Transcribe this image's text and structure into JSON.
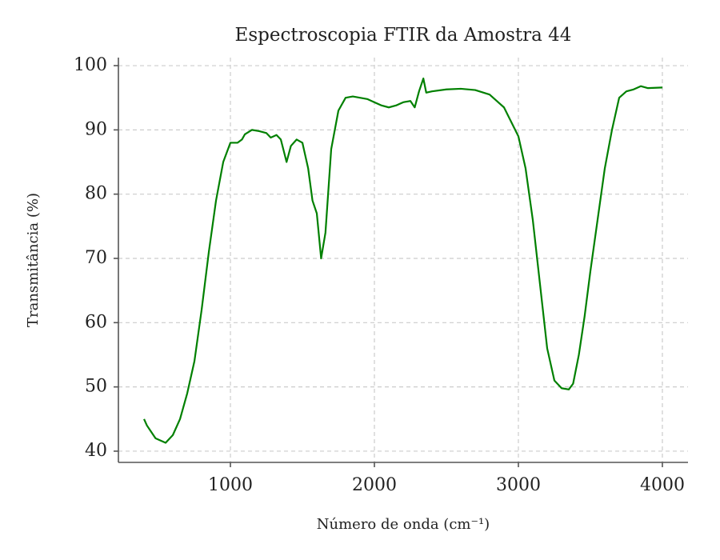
{
  "chart_data": {
    "type": "line",
    "title": "Espectroscopia FTIR da Amostra 44",
    "x_label": "Número de onda (cm⁻¹)",
    "y_label": "Transmitância (%)",
    "xlim": [
      222,
      4178
    ],
    "ylim": [
      38.25,
      101.25
    ],
    "xticks": [
      1000,
      2000,
      3000,
      4000
    ],
    "yticks": [
      40,
      50,
      60,
      70,
      80,
      90,
      100
    ],
    "grid": true,
    "series": [
      {
        "color": "#008000",
        "x": [
          400,
          420,
          450,
          480,
          500,
          550,
          600,
          650,
          700,
          750,
          800,
          850,
          900,
          950,
          1000,
          1050,
          1080,
          1100,
          1150,
          1200,
          1250,
          1280,
          1320,
          1350,
          1390,
          1420,
          1460,
          1500,
          1540,
          1570,
          1600,
          1630,
          1660,
          1700,
          1750,
          1800,
          1850,
          1900,
          1950,
          2000,
          2050,
          2100,
          2150,
          2200,
          2250,
          2280,
          2310,
          2340,
          2360,
          2400,
          2500,
          2600,
          2700,
          2800,
          2900,
          3000,
          3050,
          3100,
          3150,
          3200,
          3250,
          3300,
          3350,
          3380,
          3420,
          3460,
          3500,
          3550,
          3600,
          3650,
          3700,
          3750,
          3800,
          3850,
          3900,
          4000
        ],
        "values": [
          45,
          44,
          43,
          42,
          41.8,
          41.3,
          42.5,
          45,
          49,
          54,
          62,
          71,
          79,
          85,
          88,
          88,
          88.5,
          89.3,
          90,
          89.8,
          89.5,
          88.8,
          89.2,
          88.5,
          85,
          87.5,
          88.5,
          88,
          84,
          79,
          77,
          70,
          74,
          87,
          93,
          95,
          95.2,
          95,
          94.8,
          94.3,
          93.8,
          93.5,
          93.8,
          94.3,
          94.5,
          93.5,
          96,
          98,
          95.8,
          96,
          96.3,
          96.4,
          96.2,
          95.5,
          93.5,
          89,
          84,
          76,
          66,
          56,
          51,
          49.8,
          49.6,
          50.5,
          55,
          61,
          68,
          76,
          84,
          90,
          95,
          96,
          96.3,
          96.8,
          96.5,
          96.6
        ]
      }
    ]
  }
}
